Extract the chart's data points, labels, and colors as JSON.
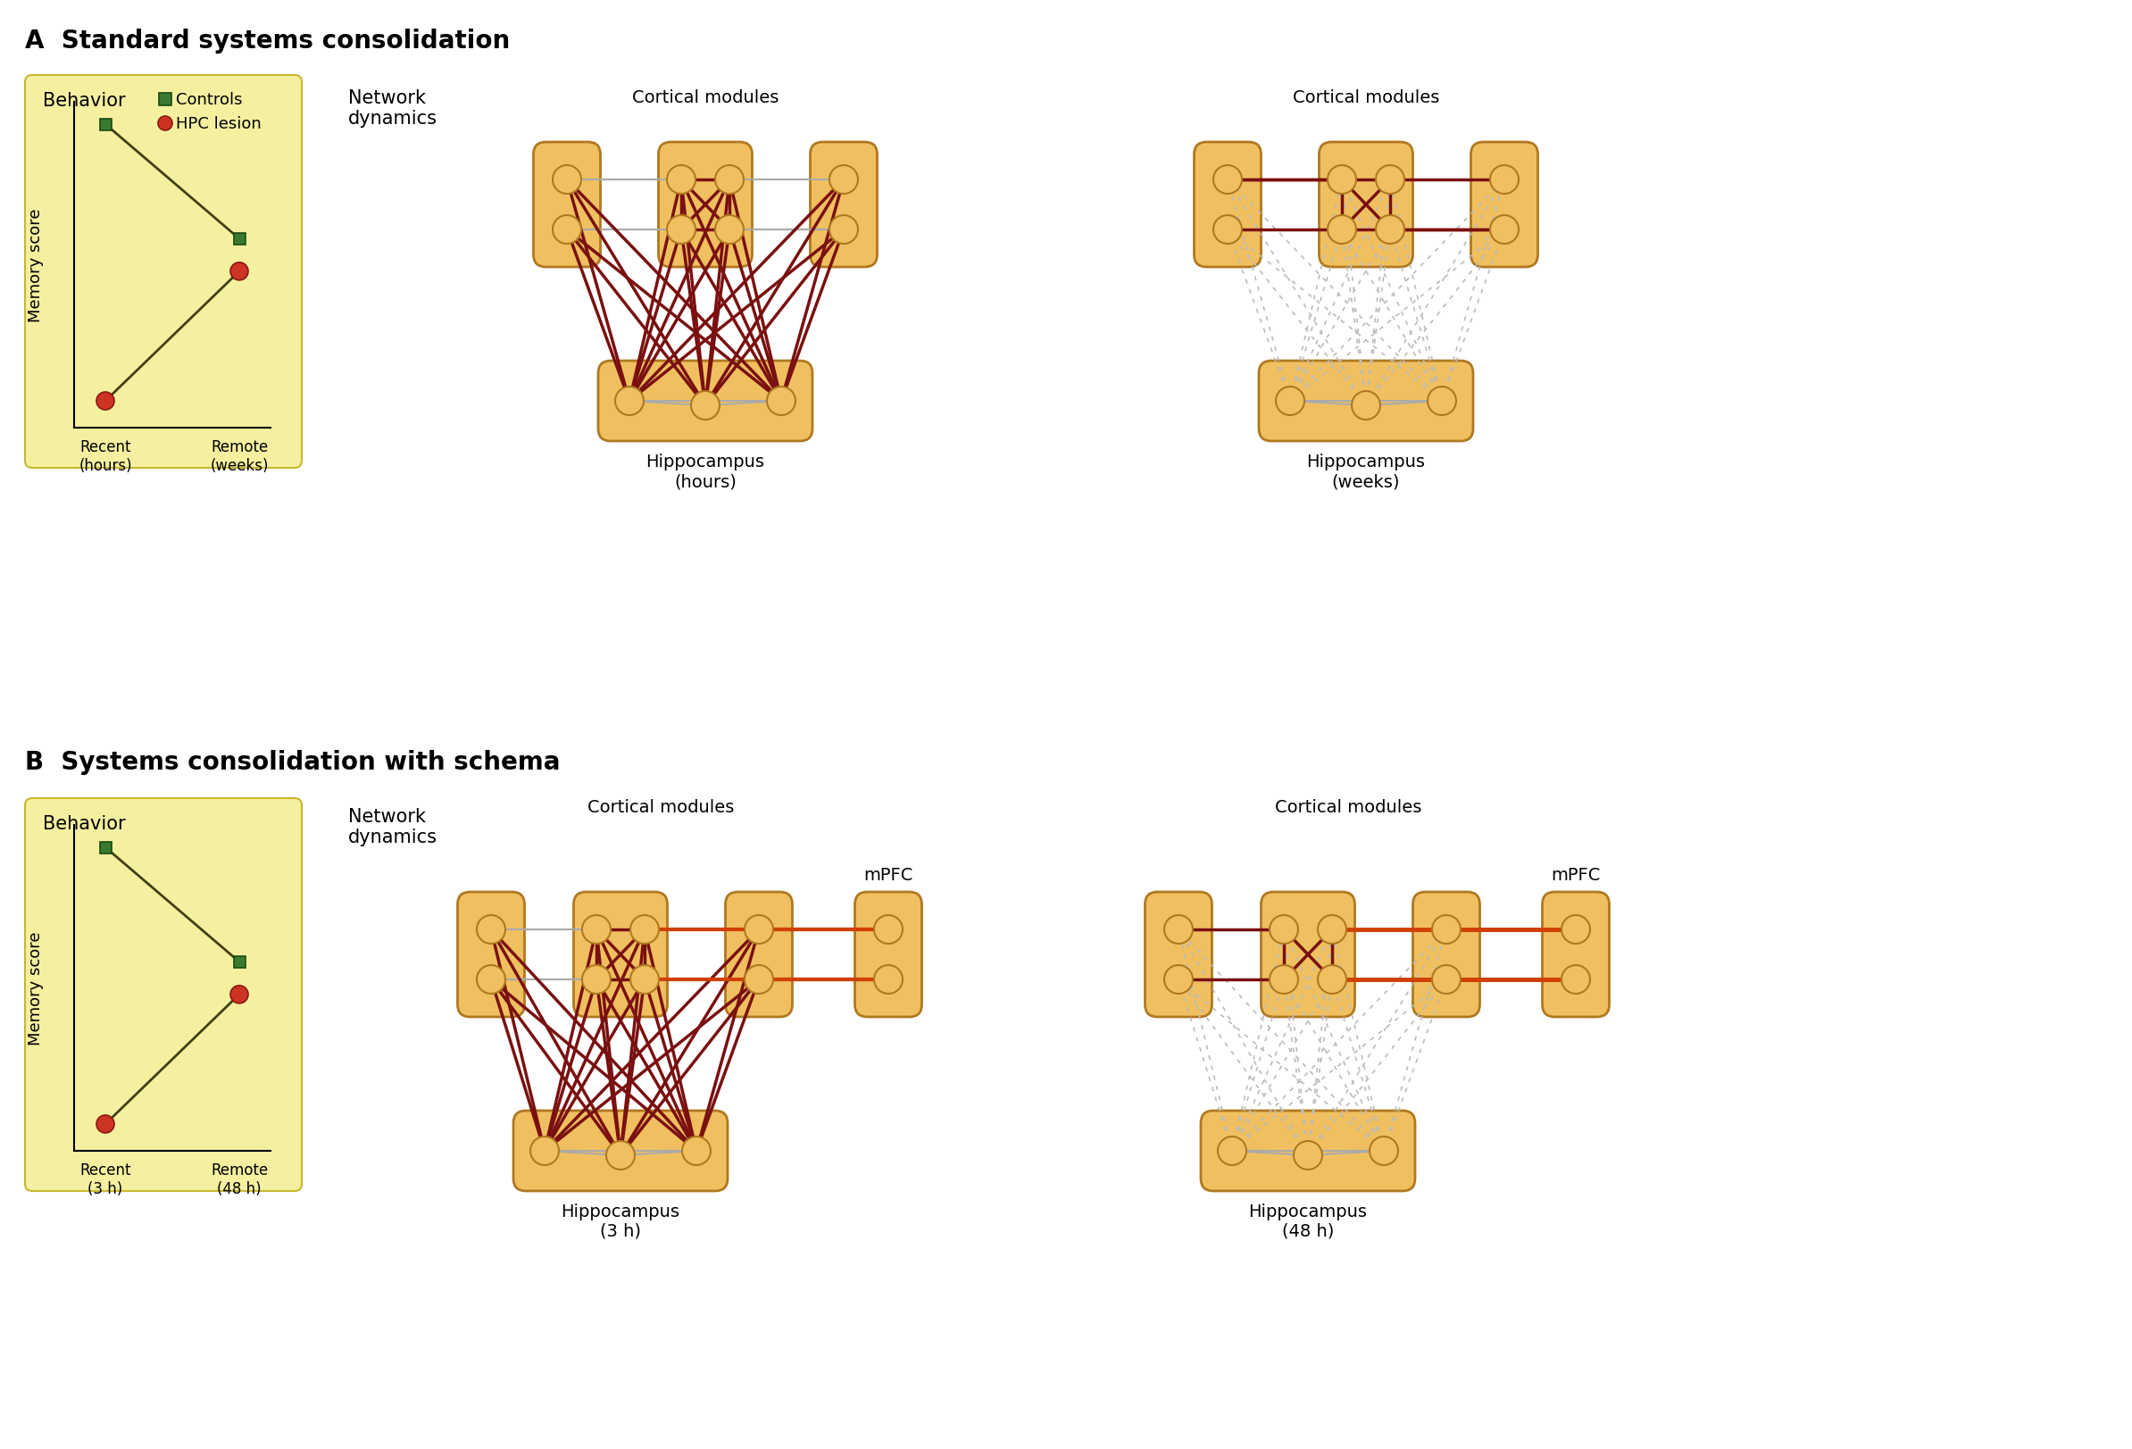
{
  "title_A": "A  Standard systems consolidation",
  "title_B": "B  Systems consolidation with schema",
  "behavior_label": "Behavior",
  "network_dynamics_label": "Network\ndynamics",
  "memory_score_label": "Memory score",
  "controls_label": "Controls",
  "hpc_lesion_label": "HPC lesion",
  "box_fill_yellow": "#f5f0a0",
  "box_edge_yellow": "#c8b830",
  "box_fill_orange": "#f0c060",
  "box_edge_orange": "#c8973a",
  "node_fill": "#f0c060",
  "node_edge": "#b07820",
  "dark_red": "#7a1010",
  "orange_red": "#d04000",
  "gray_line": "#aaaaaa",
  "dashed_gray": "#bbbbbb",
  "white_bg": "#ffffff",
  "ctrl_color": "#3a7a30",
  "hpc_color": "#cc3322",
  "panel_A_recent_label": "Recent\n(hours)",
  "panel_A_remote_label": "Remote\n(weeks)",
  "panel_B_recent_label": "Recent\n(3 h)",
  "panel_B_remote_label": "Remote\n(48 h)",
  "cortical_modules_label": "Cortical modules",
  "mPFC_label": "mPFC",
  "hippocampus_hours_label": "Hippocampus\n(hours)",
  "hippocampus_weeks_label": "Hippocampus\n(weeks)",
  "hippocampus_3h_label": "Hippocampus\n(3 h)",
  "hippocampus_48h_label": "Hippocampus\n(48 h)"
}
